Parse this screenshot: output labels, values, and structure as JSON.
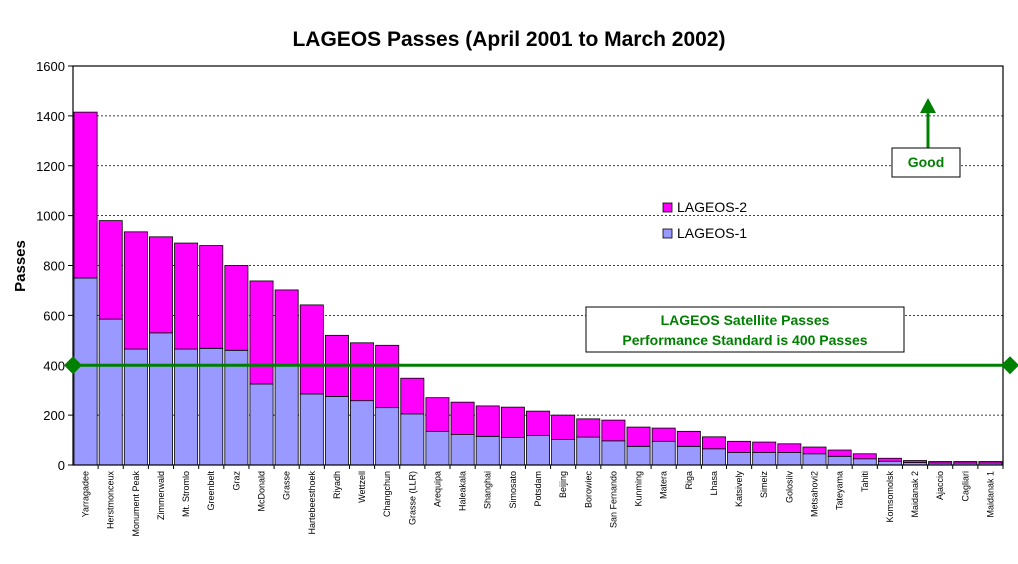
{
  "chart_data": {
    "type": "bar",
    "stacked": true,
    "title": "LAGEOS Passes (April 2001 to March 2002)",
    "ylabel": "Passes",
    "xlabel": "",
    "ylim": [
      0,
      1600
    ],
    "yticks": [
      0,
      200,
      400,
      600,
      800,
      1000,
      1200,
      1400,
      1600
    ],
    "grid": true,
    "legend_position": "upper-center-right",
    "categories": [
      "Yarragadee",
      "Herstmonceux",
      "Monument Peak",
      "Zimmerwald",
      "Mt. Stromlo",
      "Greenbelt",
      "Graz",
      "McDonald",
      "Grasse",
      "Hartebeesthoek",
      "Riyadh",
      "Wettzell",
      "Changchun",
      "Grasse (LLR)",
      "Arequipa",
      "Haleakala",
      "Shanghai",
      "Simosato",
      "Potsdam",
      "Beijing",
      "Borowiec",
      "San Fernando",
      "Kunming",
      "Matera",
      "Riga",
      "Lhasa",
      "Katsively",
      "Simeiz",
      "Golosiiv",
      "Metsahovi2",
      "Tateyama",
      "Tahiti",
      "Komsomolsk",
      "Maidanak 2",
      "Ajaccio",
      "Cagliari",
      "Maidanak 1"
    ],
    "series": [
      {
        "name": "LAGEOS-1",
        "color": "#9999ff",
        "values": [
          750,
          585,
          465,
          530,
          465,
          468,
          460,
          325,
          400,
          285,
          275,
          258,
          230,
          205,
          135,
          122,
          115,
          110,
          118,
          102,
          112,
          97,
          75,
          95,
          75,
          65,
          50,
          50,
          50,
          45,
          35,
          25,
          15,
          10,
          8,
          8,
          8
        ]
      },
      {
        "name": "LAGEOS-2",
        "color": "#ff00ff",
        "values": [
          665,
          395,
          470,
          385,
          425,
          412,
          340,
          413,
          302,
          357,
          245,
          232,
          250,
          143,
          135,
          130,
          122,
          122,
          98,
          98,
          73,
          83,
          77,
          53,
          60,
          48,
          45,
          42,
          35,
          27,
          25,
          20,
          12,
          8,
          6,
          6,
          6
        ]
      }
    ],
    "reference_line": {
      "value": 400,
      "color": "#008000"
    },
    "annotations": {
      "standard_line1": "LAGEOS Satellite Passes",
      "standard_line2": "Performance Standard is 400 Passes",
      "good_label": "Good"
    }
  }
}
